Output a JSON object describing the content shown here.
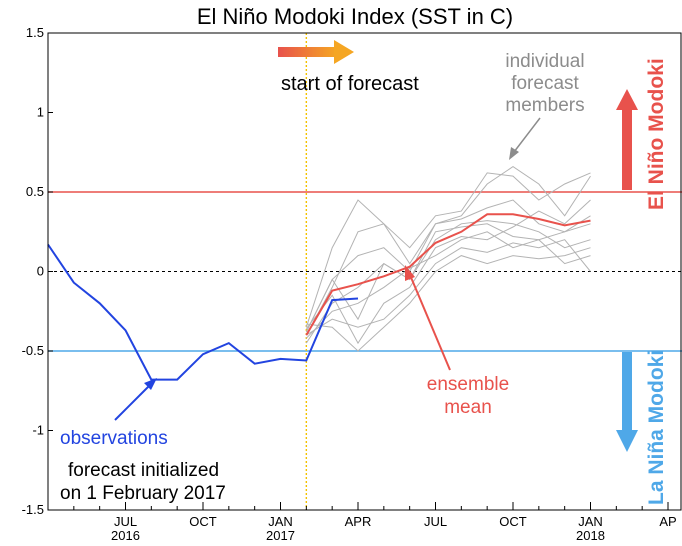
{
  "chart_data": {
    "type": "line",
    "title": "El Niño Modoki Index (SST in C)",
    "xlabel": "",
    "ylabel": "",
    "ylim": [
      -1.5,
      1.5
    ],
    "xlim": [
      "2016-04",
      "2018-04"
    ],
    "y_ticks": [
      "1.5",
      "1",
      "0.5",
      "0",
      "-0.5",
      "-1",
      "-1.5"
    ],
    "x_ticks": [
      {
        "month": "JUL",
        "year": "2016",
        "date": "2016-07"
      },
      {
        "month": "OCT",
        "year": "",
        "date": "2016-10"
      },
      {
        "month": "JAN",
        "year": "2017",
        "date": "2017-01"
      },
      {
        "month": "APR",
        "year": "",
        "date": "2017-04"
      },
      {
        "month": "JUL",
        "year": "",
        "date": "2017-07"
      },
      {
        "month": "OCT",
        "year": "",
        "date": "2017-10"
      },
      {
        "month": "JAN",
        "year": "2018",
        "date": "2018-01"
      },
      {
        "month": "AP",
        "year": "",
        "date": "2018-04"
      }
    ],
    "thresholds": [
      {
        "label": "El Niño Modoki",
        "value": 0.5,
        "color": "#e8524c"
      },
      {
        "label": "La Niña Modoki",
        "value": -0.5,
        "color": "#4fa8e8"
      }
    ],
    "forecast_start": "2017-02-01",
    "series": [
      {
        "name": "observations",
        "color": "#2244e0",
        "x": [
          "2016-04",
          "2016-05",
          "2016-06",
          "2016-07",
          "2016-08",
          "2016-09",
          "2016-10",
          "2016-11",
          "2016-12",
          "2017-01",
          "2017-02",
          "2017-03",
          "2017-04",
          "2017-05"
        ],
        "y": [
          0.17,
          -0.07,
          -0.2,
          -0.37,
          -0.68,
          -0.68,
          -0.52,
          -0.45,
          -0.58,
          -0.55,
          -0.56,
          -0.18,
          -0.17,
          null
        ]
      },
      {
        "name": "ensemble mean",
        "color": "#e8524c",
        "x": [
          "2017-02",
          "2017-03",
          "2017-04",
          "2017-05",
          "2017-06",
          "2017-07",
          "2017-08",
          "2017-09",
          "2017-10",
          "2017-11",
          "2017-12",
          "2018-01"
        ],
        "y": [
          -0.4,
          -0.12,
          -0.08,
          -0.03,
          0.03,
          0.18,
          0.25,
          0.36,
          0.36,
          0.33,
          0.29,
          0.32
        ]
      }
    ],
    "members_label": "individual forecast members",
    "members": [
      {
        "x": [
          "2017-02",
          "2017-03",
          "2017-04",
          "2017-05",
          "2017-06",
          "2017-07",
          "2017-08",
          "2017-09",
          "2017-10",
          "2017-11",
          "2017-12",
          "2018-01"
        ],
        "y": [
          -0.35,
          0.15,
          0.45,
          0.3,
          0.05,
          0.3,
          0.35,
          0.55,
          0.66,
          0.55,
          0.35,
          0.6
        ]
      },
      {
        "x": [
          "2017-02",
          "2017-03",
          "2017-04",
          "2017-05",
          "2017-06",
          "2017-07",
          "2017-08",
          "2017-09",
          "2017-10",
          "2017-11",
          "2017-12",
          "2018-01"
        ],
        "y": [
          -0.4,
          -0.1,
          0.25,
          0.3,
          0.15,
          0.35,
          0.38,
          0.62,
          0.6,
          0.45,
          0.55,
          0.62
        ]
      },
      {
        "x": [
          "2017-02",
          "2017-03",
          "2017-04",
          "2017-05",
          "2017-06",
          "2017-07",
          "2017-08",
          "2017-09",
          "2017-10",
          "2017-11",
          "2017-12",
          "2018-01"
        ],
        "y": [
          -0.38,
          -0.05,
          0.1,
          0.15,
          0.0,
          0.3,
          0.33,
          0.4,
          0.45,
          0.3,
          0.25,
          0.35
        ]
      },
      {
        "x": [
          "2017-02",
          "2017-03",
          "2017-04",
          "2017-05",
          "2017-06",
          "2017-07",
          "2017-08",
          "2017-09",
          "2017-10",
          "2017-11",
          "2017-12",
          "2018-01"
        ],
        "y": [
          -0.45,
          -0.2,
          -0.1,
          0.05,
          -0.05,
          0.2,
          0.3,
          0.32,
          0.3,
          0.25,
          0.15,
          0.2
        ]
      },
      {
        "x": [
          "2017-02",
          "2017-03",
          "2017-04",
          "2017-05",
          "2017-06",
          "2017-07",
          "2017-08",
          "2017-09",
          "2017-10",
          "2017-11",
          "2017-12",
          "2018-01"
        ],
        "y": [
          -0.42,
          -0.25,
          -0.2,
          -0.1,
          0.02,
          0.1,
          0.2,
          0.25,
          0.15,
          0.2,
          0.05,
          0.1
        ]
      },
      {
        "x": [
          "2017-02",
          "2017-03",
          "2017-04",
          "2017-05",
          "2017-06",
          "2017-07",
          "2017-08",
          "2017-09",
          "2017-10",
          "2017-11",
          "2017-12",
          "2018-01"
        ],
        "y": [
          -0.4,
          -0.3,
          -0.35,
          -0.3,
          -0.15,
          0.05,
          0.15,
          0.12,
          0.18,
          0.15,
          0.2,
          0.0
        ]
      },
      {
        "x": [
          "2017-02",
          "2017-03",
          "2017-04",
          "2017-05",
          "2017-06",
          "2017-07",
          "2017-08",
          "2017-09",
          "2017-10",
          "2017-11",
          "2017-12",
          "2018-01"
        ],
        "y": [
          -0.33,
          -0.35,
          -0.5,
          -0.35,
          -0.2,
          0.0,
          0.1,
          0.05,
          0.1,
          0.08,
          0.1,
          0.15
        ]
      },
      {
        "x": [
          "2017-02",
          "2017-03",
          "2017-04",
          "2017-05",
          "2017-06",
          "2017-07",
          "2017-08",
          "2017-09",
          "2017-10",
          "2017-11",
          "2017-12",
          "2018-01"
        ],
        "y": [
          -0.36,
          -0.15,
          -0.45,
          -0.2,
          -0.1,
          0.15,
          0.22,
          0.2,
          0.28,
          0.38,
          0.3,
          0.45
        ]
      },
      {
        "x": [
          "2017-02",
          "2017-03",
          "2017-04",
          "2017-05",
          "2017-06",
          "2017-07",
          "2017-08",
          "2017-09",
          "2017-10",
          "2017-11",
          "2017-12",
          "2018-01"
        ],
        "y": [
          -0.38,
          -0.05,
          -0.3,
          0.05,
          -0.05,
          0.25,
          0.28,
          0.3,
          0.22,
          0.2,
          0.25,
          0.3
        ]
      }
    ],
    "grid": false,
    "legend": "none"
  },
  "annotations": {
    "start_of_forecast": "start of forecast",
    "individual_members": [
      "individual",
      "forecast",
      "members"
    ],
    "el_nino_modoki": "El Niño Modoki",
    "la_nina_modoki": "La Niña Modoki",
    "ensemble_mean": [
      "ensemble",
      "mean"
    ],
    "observations": "observations",
    "forecast_initialized": [
      "forecast initialized",
      "on 1 February 2017"
    ]
  },
  "colors": {
    "observations": "#2244e0",
    "ensemble_mean": "#e8524c",
    "members": "#b3b3b3",
    "el_nino": "#e8524c",
    "la_nina": "#4fa8e8",
    "forecast_start_line": "#f2c200",
    "arrow_gradient_start": "#e8524c",
    "arrow_gradient_end": "#f5a623"
  }
}
